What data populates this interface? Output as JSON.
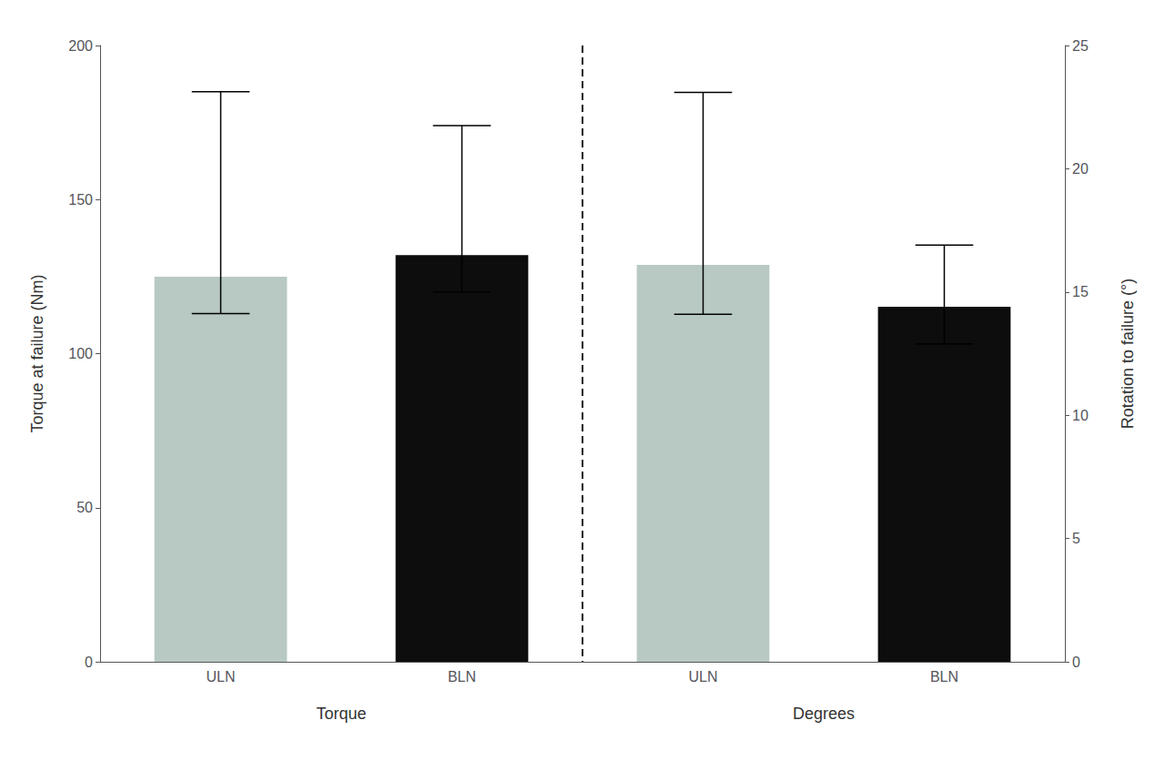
{
  "chart_data": {
    "type": "bar",
    "categories": [
      "ULN",
      "BLN",
      "ULN",
      "BLN"
    ],
    "annotations": [
      "Torque",
      "Degrees"
    ],
    "colors": [
      "#b8c9c4",
      "#0d0d0d",
      "#b8c9c4",
      "#0d0d0d"
    ],
    "series": [
      {
        "axis": "y",
        "values": [
          125,
          132,
          null,
          null
        ],
        "errors_up": [
          60,
          42,
          null,
          null
        ],
        "errors_down": [
          12,
          12,
          null,
          null
        ]
      },
      {
        "axis": "y2",
        "values": [
          null,
          null,
          16.1,
          14.4
        ],
        "errors_up": [
          null,
          null,
          7.0,
          2.5
        ],
        "errors_down": [
          null,
          null,
          2.0,
          1.5
        ]
      }
    ],
    "ylabel": "Torque at failure (Nm)",
    "y2label": "Rotation to failure (°)",
    "ylim": [
      0,
      200
    ],
    "yticks": [
      0,
      50,
      100,
      150,
      200
    ],
    "y2lim": [
      0,
      25
    ],
    "y2ticks": [
      0,
      5,
      10,
      15,
      20,
      25
    ],
    "grid": false
  }
}
